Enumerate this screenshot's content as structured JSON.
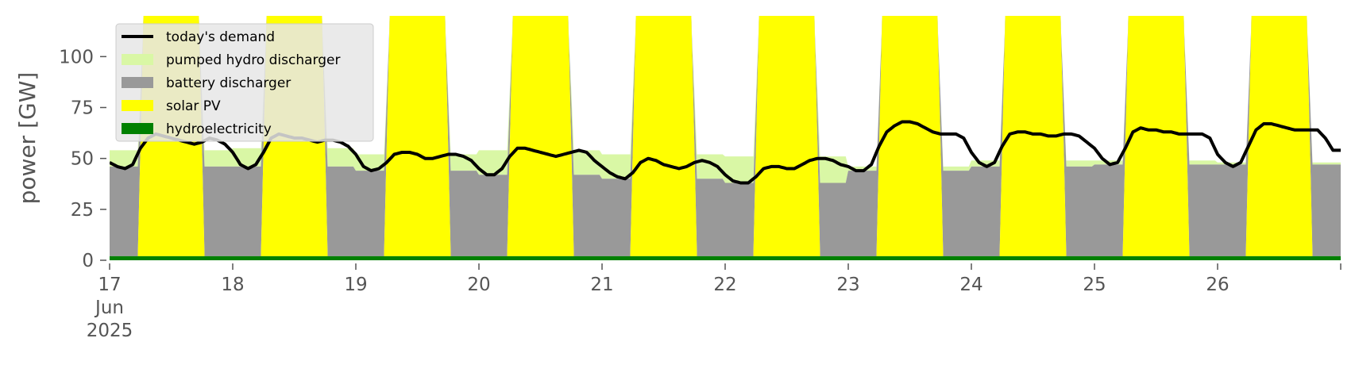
{
  "chart_data": {
    "type": "area",
    "title": "",
    "xlabel": "",
    "ylabel": "power [GW]",
    "x_ticks": [
      {
        "day": 17,
        "lines": [
          "17",
          "Jun",
          "2025"
        ]
      },
      {
        "day": 18,
        "lines": [
          "18"
        ]
      },
      {
        "day": 19,
        "lines": [
          "19"
        ]
      },
      {
        "day": 20,
        "lines": [
          "20"
        ]
      },
      {
        "day": 21,
        "lines": [
          "21"
        ]
      },
      {
        "day": 22,
        "lines": [
          "22"
        ]
      },
      {
        "day": 23,
        "lines": [
          "23"
        ]
      },
      {
        "day": 24,
        "lines": [
          "24"
        ]
      },
      {
        "day": 25,
        "lines": [
          "25"
        ]
      },
      {
        "day": 26,
        "lines": [
          "26"
        ]
      }
    ],
    "y_ticks": [
      0,
      25,
      50,
      75,
      100
    ],
    "xlim_days": [
      17,
      27
    ],
    "ylim": [
      0,
      120
    ],
    "grid": false,
    "legend_position": "top-left",
    "legend": [
      {
        "label": "today's demand",
        "kind": "line",
        "color": "#000000"
      },
      {
        "label": "pumped hydro discharger",
        "kind": "patch",
        "color": "#d9f7a5"
      },
      {
        "label": "battery discharger",
        "kind": "patch",
        "color": "#999999"
      },
      {
        "label": "solar PV",
        "kind": "patch",
        "color": "#ffff00"
      },
      {
        "label": "hydroelectricity",
        "kind": "patch",
        "color": "#008000"
      }
    ],
    "stack_order_bottom_to_top": [
      "hydroelectricity",
      "solar PV",
      "battery discharger",
      "pumped hydro discharger"
    ],
    "days": [
      {
        "day": 17,
        "night_battery": 44,
        "night_pumped": 8,
        "solar_peak": 160,
        "demand": [
          48,
          46,
          45,
          47,
          55,
          60,
          62,
          61,
          60,
          59,
          58,
          57,
          58,
          60,
          59,
          57
        ]
      },
      {
        "day": 18,
        "night_battery": 44,
        "night_pumped": 9,
        "solar_peak": 160,
        "demand": [
          53,
          47,
          45,
          47,
          53,
          60,
          62,
          61,
          60,
          60,
          59,
          58,
          59,
          59,
          58,
          56
        ]
      },
      {
        "day": 19,
        "night_battery": 42,
        "night_pumped": 8,
        "solar_peak": 160,
        "demand": [
          52,
          46,
          44,
          45,
          48,
          52,
          53,
          53,
          52,
          50,
          50,
          51,
          52,
          52,
          51,
          49
        ]
      },
      {
        "day": 20,
        "night_battery": 40,
        "night_pumped": 12,
        "solar_peak": 160,
        "demand": [
          45,
          42,
          42,
          45,
          51,
          55,
          55,
          54,
          53,
          52,
          51,
          52,
          53,
          54,
          53,
          49
        ]
      },
      {
        "day": 21,
        "night_battery": 38,
        "night_pumped": 12,
        "solar_peak": 160,
        "demand": [
          46,
          43,
          41,
          40,
          43,
          48,
          50,
          49,
          47,
          46,
          45,
          46,
          48,
          49,
          48,
          46
        ]
      },
      {
        "day": 22,
        "night_battery": 36,
        "night_pumped": 13,
        "solar_peak": 160,
        "demand": [
          42,
          39,
          38,
          38,
          41,
          45,
          46,
          46,
          45,
          45,
          47,
          49,
          50,
          50,
          49,
          47
        ]
      },
      {
        "day": 23,
        "night_battery": 42,
        "night_pumped": 2,
        "solar_peak": 160,
        "demand": [
          46,
          44,
          44,
          47,
          56,
          63,
          66,
          68,
          68,
          67,
          65,
          63,
          62,
          62,
          62,
          60
        ]
      },
      {
        "day": 24,
        "night_battery": 44,
        "night_pumped": 3,
        "solar_peak": 160,
        "demand": [
          53,
          48,
          46,
          48,
          56,
          62,
          63,
          63,
          62,
          62,
          61,
          61,
          62,
          62,
          61,
          58
        ]
      },
      {
        "day": 25,
        "night_battery": 45,
        "night_pumped": 2,
        "solar_peak": 160,
        "demand": [
          55,
          50,
          47,
          48,
          55,
          63,
          65,
          64,
          64,
          63,
          63,
          62,
          62,
          62,
          62,
          60
        ]
      },
      {
        "day": 26,
        "night_battery": 45,
        "night_pumped": 1,
        "solar_peak": 160,
        "demand": [
          52,
          48,
          46,
          48,
          56,
          64,
          67,
          67,
          66,
          65,
          64,
          64,
          64,
          64,
          60,
          54
        ]
      }
    ],
    "hydroelectricity_level": 2
  }
}
